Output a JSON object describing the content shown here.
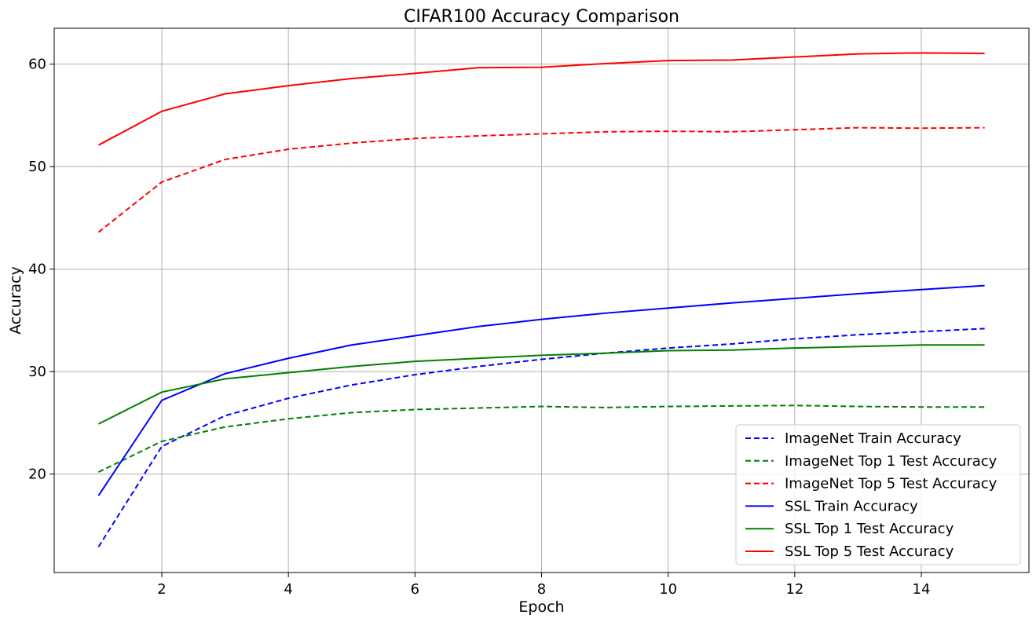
{
  "chart_data": {
    "type": "line",
    "title": "CIFAR100 Accuracy Comparison",
    "xlabel": "Epoch",
    "ylabel": "Accuracy",
    "xlim": [
      0.3,
      15.7
    ],
    "ylim": [
      10.4,
      63.5
    ],
    "xticks": [
      2,
      4,
      6,
      8,
      10,
      12,
      14
    ],
    "yticks": [
      20,
      30,
      40,
      50,
      60
    ],
    "grid": true,
    "legend_position": "lower-right",
    "x": [
      1,
      2,
      3,
      4,
      5,
      6,
      7,
      8,
      9,
      10,
      11,
      12,
      13,
      14,
      15
    ],
    "series": [
      {
        "name": "ImageNet Train Accuracy",
        "color": "#0000ff",
        "style": "dashed",
        "values": [
          12.9,
          22.7,
          25.7,
          27.4,
          28.7,
          29.7,
          30.5,
          31.2,
          31.8,
          32.3,
          32.7,
          33.2,
          33.6,
          33.9,
          34.2
        ]
      },
      {
        "name": "ImageNet Top 1 Test Accuracy",
        "color": "#008000",
        "style": "dashed",
        "values": [
          20.2,
          23.2,
          24.6,
          25.4,
          26.0,
          26.3,
          26.45,
          26.6,
          26.5,
          26.6,
          26.65,
          26.7,
          26.6,
          26.55,
          26.55
        ]
      },
      {
        "name": "ImageNet Top 5 Test Accuracy",
        "color": "#ff0000",
        "style": "dashed",
        "values": [
          43.6,
          48.5,
          50.7,
          51.7,
          52.3,
          52.75,
          53.0,
          53.2,
          53.4,
          53.45,
          53.4,
          53.6,
          53.8,
          53.75,
          53.8
        ]
      },
      {
        "name": "SSL Train Accuracy",
        "color": "#0000ff",
        "style": "solid",
        "values": [
          17.9,
          27.2,
          29.8,
          31.3,
          32.6,
          33.5,
          34.4,
          35.1,
          35.7,
          36.2,
          36.7,
          37.15,
          37.6,
          38.0,
          38.4
        ]
      },
      {
        "name": "SSL Top 1 Test Accuracy",
        "color": "#008000",
        "style": "solid",
        "values": [
          24.9,
          28.0,
          29.3,
          29.9,
          30.5,
          31.0,
          31.3,
          31.6,
          31.8,
          32.05,
          32.1,
          32.3,
          32.45,
          32.6,
          32.6
        ]
      },
      {
        "name": "SSL Top 5 Test Accuracy",
        "color": "#ff0000",
        "style": "solid",
        "values": [
          52.1,
          55.4,
          57.1,
          57.9,
          58.6,
          59.1,
          59.65,
          59.7,
          60.05,
          60.35,
          60.4,
          60.7,
          61.0,
          61.1,
          61.05
        ]
      }
    ]
  }
}
